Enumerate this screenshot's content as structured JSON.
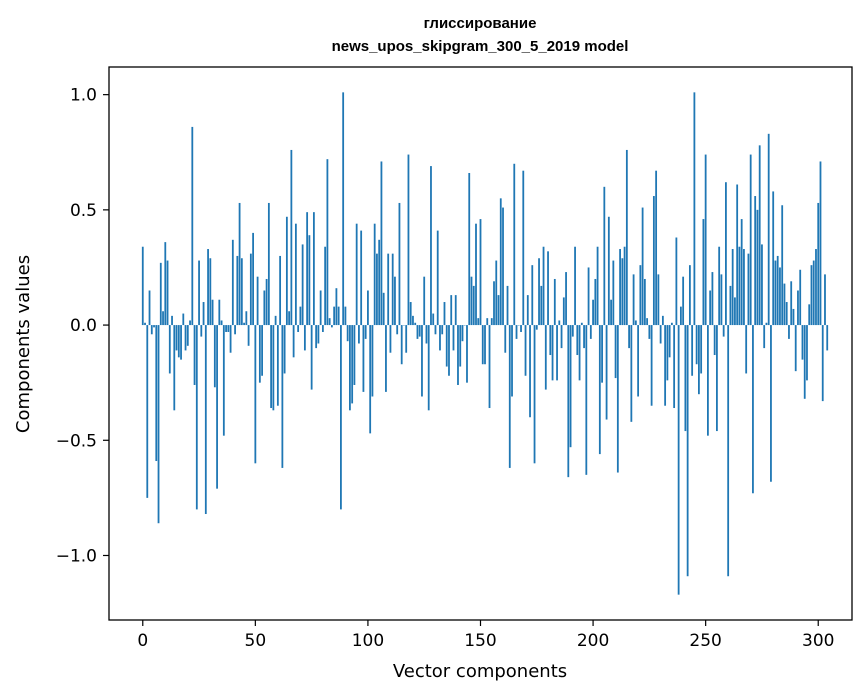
{
  "chart_data": {
    "type": "bar",
    "title_line1": "глиссирование",
    "title_line2": "news_upos_skipgram_300_5_2019 model",
    "xlabel": "Vector components",
    "ylabel": "Components values",
    "xlim": [
      -15,
      315
    ],
    "ylim": [
      -1.28,
      1.12
    ],
    "x_ticks": [
      0,
      50,
      100,
      150,
      200,
      250,
      300
    ],
    "x_tick_labels": [
      "0",
      "50",
      "100",
      "150",
      "200",
      "250",
      "300"
    ],
    "y_ticks": [
      -1.0,
      -0.5,
      0.0,
      0.5,
      1.0
    ],
    "y_tick_labels": [
      "−1.0",
      "−0.5",
      "0.0",
      "0.5",
      "1.0"
    ],
    "bar_color": "#1f77b4",
    "values": [
      0.34,
      0.01,
      -0.75,
      0.15,
      -0.04,
      -0.01,
      -0.59,
      -0.86,
      0.27,
      0.06,
      0.36,
      0.28,
      -0.21,
      0.04,
      -0.37,
      -0.11,
      -0.14,
      -0.15,
      0.05,
      -0.11,
      -0.09,
      0.02,
      0.86,
      -0.26,
      -0.8,
      0.28,
      -0.05,
      0.1,
      -0.82,
      0.33,
      0.29,
      0.11,
      -0.27,
      -0.71,
      0.11,
      0.02,
      -0.48,
      -0.03,
      -0.03,
      -0.12,
      0.37,
      -0.04,
      0.3,
      0.53,
      0.29,
      0.01,
      0.06,
      -0.09,
      0.31,
      0.4,
      -0.6,
      0.21,
      -0.25,
      -0.22,
      0.15,
      0.2,
      0.53,
      -0.36,
      -0.37,
      0.04,
      -0.35,
      0.3,
      -0.62,
      -0.21,
      0.47,
      0.06,
      0.76,
      -0.14,
      0.44,
      -0.03,
      0.08,
      0.35,
      -0.11,
      0.49,
      0.39,
      -0.28,
      0.49,
      -0.1,
      -0.08,
      0.15,
      -0.03,
      0.34,
      0.72,
      0.03,
      -0.01,
      0.08,
      0.16,
      0.08,
      -0.8,
      1.01,
      0.08,
      -0.07,
      -0.37,
      -0.34,
      -0.26,
      0.44,
      -0.08,
      0.41,
      -0.29,
      -0.06,
      0.15,
      -0.47,
      -0.31,
      0.44,
      0.31,
      0.37,
      0.71,
      0.14,
      -0.29,
      0.31,
      -0.12,
      0.31,
      0.21,
      -0.04,
      0.53,
      -0.17,
      0.0,
      -0.12,
      0.74,
      0.1,
      0.04,
      0.01,
      -0.06,
      -0.05,
      -0.31,
      0.21,
      -0.08,
      -0.37,
      0.69,
      0.05,
      -0.04,
      0.41,
      -0.11,
      -0.04,
      0.1,
      -0.18,
      -0.22,
      0.13,
      -0.11,
      0.13,
      -0.26,
      -0.18,
      -0.07,
      0.0,
      -0.25,
      0.66,
      0.21,
      0.17,
      0.44,
      0.03,
      0.46,
      -0.17,
      -0.17,
      0.03,
      -0.36,
      0.03,
      0.19,
      0.28,
      0.13,
      0.55,
      0.51,
      -0.12,
      0.17,
      -0.62,
      -0.31,
      0.7,
      -0.06,
      0.0,
      -0.03,
      0.67,
      -0.22,
      0.13,
      -0.4,
      0.26,
      -0.6,
      -0.02,
      0.29,
      0.17,
      0.34,
      -0.28,
      0.32,
      -0.13,
      -0.24,
      0.2,
      -0.24,
      0.02,
      -0.1,
      0.12,
      0.23,
      -0.66,
      -0.53,
      -0.05,
      0.34,
      -0.13,
      -0.24,
      0.01,
      -0.1,
      -0.65,
      0.25,
      -0.06,
      0.11,
      0.2,
      0.34,
      -0.56,
      -0.25,
      0.6,
      -0.41,
      0.47,
      0.11,
      0.28,
      -0.23,
      -0.64,
      0.33,
      0.29,
      0.34,
      0.76,
      -0.1,
      -0.42,
      0.22,
      0.02,
      -0.31,
      0.26,
      0.51,
      0.2,
      0.03,
      -0.06,
      -0.35,
      0.56,
      0.67,
      0.22,
      -0.08,
      0.04,
      -0.35,
      -0.24,
      -0.14,
      0.01,
      -0.36,
      0.38,
      -1.17,
      0.08,
      0.21,
      -0.46,
      -1.09,
      0.26,
      -0.22,
      1.01,
      -0.17,
      -0.3,
      -0.21,
      0.46,
      0.74,
      -0.48,
      0.15,
      0.23,
      -0.13,
      -0.46,
      0.34,
      0.22,
      -0.05,
      0.62,
      -1.09,
      0.17,
      0.33,
      0.12,
      0.61,
      0.34,
      0.46,
      0.33,
      -0.21,
      0.31,
      0.74,
      -0.73,
      0.56,
      0.5,
      0.78,
      0.35,
      -0.1,
      0.01,
      0.83,
      -0.68,
      0.58,
      0.28,
      0.3,
      0.25,
      0.52,
      0.18,
      0.1,
      -0.06,
      0.19,
      0.07,
      -0.2,
      0.15,
      0.24,
      -0.15,
      -0.32,
      -0.24,
      0.09,
      0.26,
      0.28,
      0.33,
      0.53,
      0.71,
      -0.33,
      0.22,
      -0.11
    ]
  }
}
